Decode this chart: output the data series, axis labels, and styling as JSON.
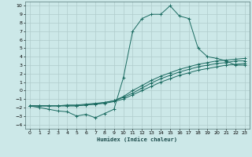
{
  "xlabel": "Humidex (Indice chaleur)",
  "background_color": "#cce8e8",
  "grid_color": "#b0cccc",
  "line_color": "#1a6a60",
  "xlim": [
    -0.5,
    23.5
  ],
  "ylim": [
    -4.5,
    10.5
  ],
  "xticks": [
    0,
    1,
    2,
    3,
    4,
    5,
    6,
    7,
    8,
    9,
    10,
    11,
    12,
    13,
    14,
    15,
    16,
    17,
    18,
    19,
    20,
    21,
    22,
    23
  ],
  "yticks": [
    -4,
    -3,
    -2,
    -1,
    0,
    1,
    2,
    3,
    4,
    5,
    6,
    7,
    8,
    9,
    10
  ],
  "line1_x": [
    0,
    1,
    2,
    3,
    4,
    5,
    6,
    7,
    8,
    9,
    10,
    11,
    12,
    13,
    14,
    15,
    16,
    17,
    18,
    19,
    20,
    21,
    22,
    23
  ],
  "line1_y": [
    -1.8,
    -2.0,
    -2.2,
    -2.4,
    -2.5,
    -3.0,
    -2.8,
    -3.2,
    -2.7,
    -2.2,
    1.5,
    7.0,
    8.5,
    9.0,
    9.0,
    10.0,
    8.8,
    8.5,
    5.0,
    4.0,
    3.8,
    3.5,
    3.0,
    3.0
  ],
  "line2_x": [
    0,
    1,
    2,
    3,
    4,
    5,
    6,
    7,
    8,
    9,
    10,
    11,
    12,
    13,
    14,
    15,
    16,
    17,
    18,
    19,
    20,
    21,
    22,
    23
  ],
  "line2_y": [
    -1.8,
    -1.8,
    -1.8,
    -1.8,
    -1.7,
    -1.7,
    -1.6,
    -1.5,
    -1.4,
    -1.2,
    -0.8,
    -0.3,
    0.3,
    0.9,
    1.4,
    1.8,
    2.2,
    2.5,
    2.8,
    3.0,
    3.2,
    3.3,
    3.5,
    3.5
  ],
  "line3_x": [
    0,
    1,
    2,
    3,
    4,
    5,
    6,
    7,
    8,
    9,
    10,
    11,
    12,
    13,
    14,
    15,
    16,
    17,
    18,
    19,
    20,
    21,
    22,
    23
  ],
  "line3_y": [
    -1.8,
    -1.8,
    -1.8,
    -1.8,
    -1.8,
    -1.8,
    -1.7,
    -1.6,
    -1.5,
    -1.3,
    -1.0,
    -0.5,
    0.0,
    0.5,
    1.0,
    1.4,
    1.8,
    2.1,
    2.4,
    2.6,
    2.8,
    3.0,
    3.1,
    3.2
  ],
  "line4_x": [
    0,
    1,
    2,
    3,
    4,
    5,
    6,
    7,
    8,
    9,
    10,
    11,
    12,
    13,
    14,
    15,
    16,
    17,
    18,
    19,
    20,
    21,
    22,
    23
  ],
  "line4_y": [
    -1.8,
    -1.8,
    -1.8,
    -1.8,
    -1.8,
    -1.8,
    -1.7,
    -1.6,
    -1.4,
    -1.2,
    -0.7,
    0.0,
    0.6,
    1.2,
    1.7,
    2.1,
    2.5,
    2.8,
    3.1,
    3.3,
    3.5,
    3.6,
    3.7,
    3.8
  ]
}
